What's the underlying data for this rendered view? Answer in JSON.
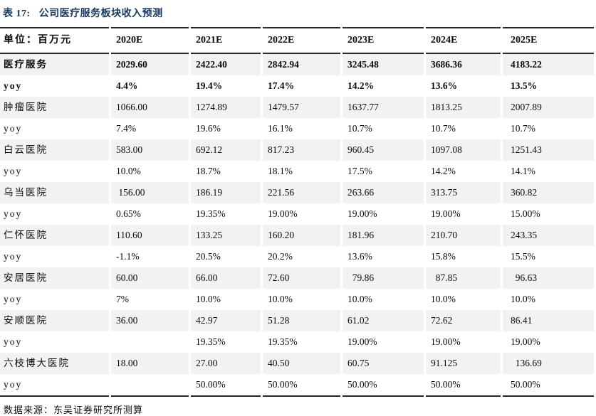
{
  "title": {
    "prefix": "表 17:",
    "text": "公司医疗服务板块收入预测"
  },
  "table": {
    "unit_label": "单位：百万元",
    "year_headers": [
      "2020E",
      "2021E",
      "2022E",
      "2023E",
      "2024E",
      "2025E"
    ],
    "rows": [
      {
        "label": "医疗服务",
        "bold": true,
        "striped": true,
        "values": [
          "2029.60",
          "2422.40",
          "2842.94",
          "3245.48",
          "3686.36",
          "4183.22"
        ]
      },
      {
        "label": "yoy",
        "bold": true,
        "striped": false,
        "values": [
          "4.4%",
          "19.4%",
          "17.4%",
          "14.2%",
          "13.6%",
          "13.5%"
        ]
      },
      {
        "label": "肿瘤医院",
        "bold": false,
        "striped": true,
        "values": [
          "1066.00",
          "1274.89",
          "1479.57",
          "1637.77",
          "1813.25",
          "2007.89"
        ]
      },
      {
        "label": "yoy",
        "bold": false,
        "striped": false,
        "values": [
          "7.4%",
          "19.6%",
          "16.1%",
          "10.7%",
          "10.7%",
          "10.7%"
        ]
      },
      {
        "label": "白云医院",
        "bold": false,
        "striped": true,
        "values": [
          "583.00",
          "692.12",
          "817.23",
          "960.45",
          "1097.08",
          "1251.43"
        ]
      },
      {
        "label": "yoy",
        "bold": false,
        "striped": false,
        "values": [
          "10.0%",
          "18.7%",
          "18.1%",
          "17.5%",
          "14.2%",
          "14.1%"
        ]
      },
      {
        "label": "乌当医院",
        "bold": false,
        "striped": true,
        "values": [
          " 156.00",
          "186.19",
          "221.56",
          "263.66",
          "313.75",
          "360.82"
        ]
      },
      {
        "label": "yoy",
        "bold": false,
        "striped": false,
        "values": [
          "0.65%",
          "19.35%",
          "19.00%",
          "19.00%",
          "19.00%",
          "15.00%"
        ]
      },
      {
        "label": "仁怀医院",
        "bold": false,
        "striped": true,
        "values": [
          "110.60",
          "133.25",
          "160.20",
          "181.96",
          "210.70",
          "243.35"
        ]
      },
      {
        "label": "yoy",
        "bold": false,
        "striped": false,
        "values": [
          "-1.1%",
          "20.5%",
          "20.2%",
          "13.6%",
          "15.8%",
          "15.5%"
        ]
      },
      {
        "label": "安居医院",
        "bold": false,
        "striped": true,
        "values": [
          "60.00",
          "66.00",
          "72.60",
          "  79.86",
          "  87.85",
          "  96.63"
        ]
      },
      {
        "label": "yoy",
        "bold": false,
        "striped": false,
        "values": [
          "7%",
          "10.0%",
          "10.0%",
          "10.0%",
          "10.0%",
          "10.0%"
        ]
      },
      {
        "label": "安顺医院",
        "bold": false,
        "striped": true,
        "values": [
          "36.00",
          "42.97",
          "51.28",
          "61.02",
          "72.62",
          "86.41"
        ]
      },
      {
        "label": "yoy",
        "bold": false,
        "striped": false,
        "values": [
          "",
          "19.35%",
          "19.35%",
          "19.00%",
          "19.00%",
          "19.00%"
        ]
      },
      {
        "label": "六枝博大医院",
        "bold": false,
        "striped": true,
        "values": [
          "18.00",
          "27.00",
          "40.50",
          "60.75",
          "91.125",
          "  136.69"
        ]
      },
      {
        "label": "yoy",
        "bold": false,
        "striped": false,
        "values": [
          "",
          "50.00%",
          "50.00%",
          "50.00%",
          "50.00%",
          "50.00%"
        ]
      }
    ]
  },
  "footer": {
    "source_label": "数据来源：东吴证券研究所测算"
  },
  "colors": {
    "accent_navy": "#17375e",
    "rule": "#262626",
    "stripe": "#f2f2f2"
  }
}
